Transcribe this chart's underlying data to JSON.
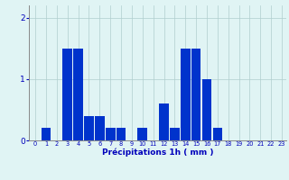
{
  "categories": [
    0,
    1,
    2,
    3,
    4,
    5,
    6,
    7,
    8,
    9,
    10,
    11,
    12,
    13,
    14,
    15,
    16,
    17,
    18,
    19,
    20,
    21,
    22,
    23
  ],
  "values": [
    0.0,
    0.2,
    0.0,
    1.5,
    1.5,
    0.4,
    0.4,
    0.2,
    0.2,
    0.0,
    0.2,
    0.0,
    0.6,
    0.2,
    1.5,
    1.5,
    1.0,
    0.2,
    0.0,
    0.0,
    0.0,
    0.0,
    0.0,
    0.0
  ],
  "bar_color": "#0033cc",
  "background_color": "#e0f4f4",
  "grid_color": "#b0cece",
  "xlabel": "Précipitations 1h ( mm )",
  "xlabel_color": "#0000bb",
  "tick_color": "#0000bb",
  "ylim": [
    0,
    2.2
  ],
  "yticks": [
    0,
    1,
    2
  ],
  "bar_width": 0.9
}
